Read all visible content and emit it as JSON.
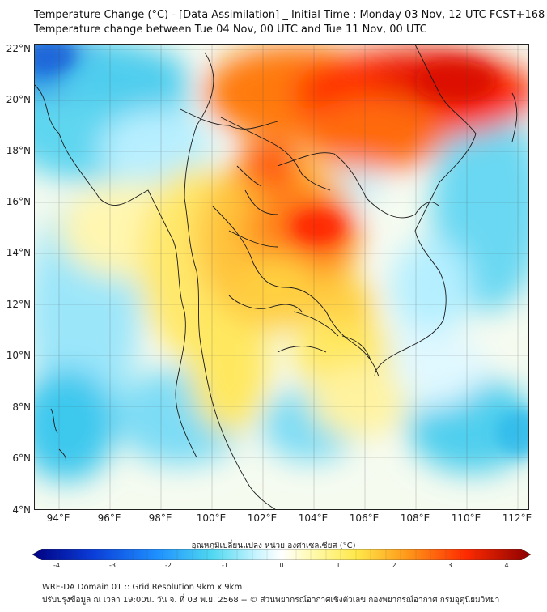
{
  "title": {
    "line1": "Temperature Change (°C) - [Data Assimilation] _ Initial Time : Monday 03 Nov, 12 UTC FCST+168",
    "line2": "Temperature change between Tue 04 Nov, 00 UTC and Tue 11 Nov, 00 UTC"
  },
  "map": {
    "lon_ticks": [
      "94°E",
      "96°E",
      "98°E",
      "100°E",
      "102°E",
      "104°E",
      "106°E",
      "108°E",
      "110°E",
      "112°E"
    ],
    "lat_ticks": [
      "22°N",
      "20°N",
      "18°N",
      "16°N",
      "14°N",
      "12°N",
      "10°N",
      "8°N",
      "6°N",
      "4°N"
    ],
    "lon_range": [
      93,
      112.5
    ],
    "lat_range": [
      4,
      22.2
    ]
  },
  "colorbar": {
    "title": "อุณหภูมิเปลี่ยนแปลง หน่วย องศาเซลเซียส (°C)",
    "labels": [
      "-4",
      "-3",
      "-2",
      "-1",
      "0",
      "1",
      "2",
      "3",
      "4"
    ],
    "range": [
      -4,
      4
    ],
    "colors": {
      "min": "#000080",
      "cool": "#1e90ff",
      "cyan": "#4fd8f0",
      "light": "#c8f4ff",
      "neutral": "#ffffff",
      "pale_yellow": "#fffab0",
      "yellow": "#ffe84a",
      "orange": "#ff9a1a",
      "red": "#ff2a00",
      "max": "#8b0000"
    }
  },
  "footer": {
    "line1": "WRF-DA Domain 01 :: Grid Resolution 9km x 9km",
    "line2": "ปรับปรุงข้อมูล ณ เวลา 19:00น. วัน จ. ที่ 03 พ.ย. 2568 -- © ส่วนพยากรณ์อากาศเชิงตัวเลข กองพยากรณ์อากาศ กรมอุตุนิยมวิทยา"
  }
}
